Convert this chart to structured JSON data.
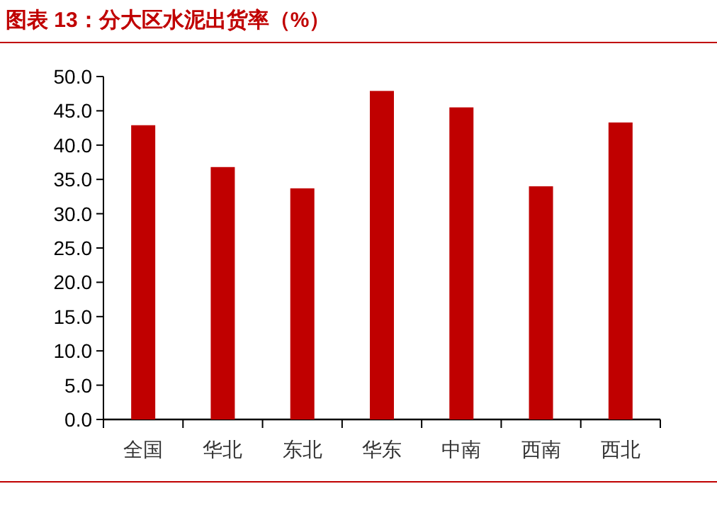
{
  "chart_data": {
    "type": "bar",
    "title": "图表 13：分大区水泥出货率（%）",
    "categories": [
      "全国",
      "华北",
      "东北",
      "华东",
      "中南",
      "西南",
      "西北"
    ],
    "series": [
      {
        "color": "#c00000",
        "values": [
          42.9,
          36.8,
          33.7,
          47.9,
          45.5,
          34.0,
          43.3
        ]
      }
    ],
    "ylim": [
      0,
      50
    ],
    "yticks": [
      {
        "value": 0,
        "label": "0.0"
      },
      {
        "value": 5,
        "label": "5.0"
      },
      {
        "value": 10,
        "label": "10.0"
      },
      {
        "value": 15,
        "label": "15.0"
      },
      {
        "value": 20,
        "label": "20.0"
      },
      {
        "value": 25,
        "label": "25.0"
      },
      {
        "value": 30,
        "label": "30.0"
      },
      {
        "value": 35,
        "label": "35.0"
      },
      {
        "value": 40,
        "label": "40.0"
      },
      {
        "value": 45,
        "label": "45.0"
      },
      {
        "value": 50,
        "label": "50.0"
      }
    ],
    "grid": false
  }
}
